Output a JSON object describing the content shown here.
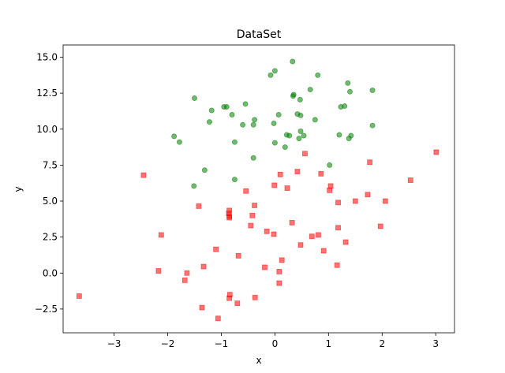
{
  "chart_data": {
    "type": "scatter",
    "title": "DataSet",
    "xlabel": "x",
    "ylabel": "y",
    "xlim": [
      -3.95,
      3.35
    ],
    "ylim": [
      -4.15,
      15.85
    ],
    "xticks": [
      -3,
      -2,
      -1,
      0,
      1,
      2,
      3
    ],
    "xtick_labels": [
      "−3",
      "−2",
      "−1",
      "0",
      "1",
      "2",
      "3"
    ],
    "yticks": [
      -2.5,
      0.0,
      2.5,
      5.0,
      7.5,
      10.0,
      12.5,
      15.0
    ],
    "ytick_labels": [
      "−2.5",
      "0.0",
      "2.5",
      "5.0",
      "7.5",
      "10.0",
      "12.5",
      "15.0"
    ],
    "grid": false,
    "series": [
      {
        "marker": "circle",
        "color": "#008000",
        "alpha": 0.55,
        "points": [
          [
            0.33,
            14.7
          ],
          [
            -0.08,
            13.75
          ],
          [
            0.0,
            14.05
          ],
          [
            0.8,
            13.75
          ],
          [
            1.36,
            13.2
          ],
          [
            0.34,
            12.3
          ],
          [
            0.35,
            12.4
          ],
          [
            0.66,
            12.75
          ],
          [
            1.4,
            12.6
          ],
          [
            1.82,
            12.7
          ],
          [
            -1.5,
            12.15
          ],
          [
            -0.55,
            11.75
          ],
          [
            -0.95,
            11.55
          ],
          [
            -0.9,
            11.55
          ],
          [
            -1.18,
            11.3
          ],
          [
            0.47,
            12.05
          ],
          [
            1.23,
            11.55
          ],
          [
            1.3,
            11.6
          ],
          [
            0.42,
            11.05
          ],
          [
            0.48,
            10.95
          ],
          [
            0.07,
            11.0
          ],
          [
            -0.8,
            11.0
          ],
          [
            -0.38,
            10.65
          ],
          [
            -0.6,
            10.3
          ],
          [
            -0.4,
            10.3
          ],
          [
            -1.22,
            10.5
          ],
          [
            -0.02,
            10.4
          ],
          [
            0.75,
            10.65
          ],
          [
            1.82,
            10.25
          ],
          [
            0.48,
            9.85
          ],
          [
            0.54,
            9.55
          ],
          [
            0.22,
            9.6
          ],
          [
            0.27,
            9.55
          ],
          [
            0.45,
            9.35
          ],
          [
            1.2,
            9.6
          ],
          [
            1.38,
            9.35
          ],
          [
            1.42,
            9.55
          ],
          [
            -1.88,
            9.5
          ],
          [
            -1.78,
            9.1
          ],
          [
            -0.75,
            9.1
          ],
          [
            0.0,
            9.05
          ],
          [
            0.19,
            8.75
          ],
          [
            -0.4,
            8.0
          ],
          [
            -1.31,
            7.15
          ],
          [
            1.02,
            7.5
          ],
          [
            -0.75,
            6.5
          ],
          [
            -1.51,
            6.05
          ]
        ]
      },
      {
        "marker": "square",
        "color": "#ff0000",
        "alpha": 0.55,
        "points": [
          [
            3.01,
            8.4
          ],
          [
            0.56,
            8.3
          ],
          [
            1.77,
            7.7
          ],
          [
            -2.45,
            6.8
          ],
          [
            0.42,
            7.05
          ],
          [
            0.1,
            6.85
          ],
          [
            0.86,
            6.9
          ],
          [
            2.53,
            6.45
          ],
          [
            -0.01,
            6.1
          ],
          [
            0.23,
            5.9
          ],
          [
            1.04,
            6.05
          ],
          [
            1.02,
            5.75
          ],
          [
            -0.54,
            5.7
          ],
          [
            1.73,
            5.45
          ],
          [
            -1.42,
            4.65
          ],
          [
            -0.38,
            4.7
          ],
          [
            1.5,
            5.0
          ],
          [
            1.18,
            4.9
          ],
          [
            2.06,
            5.0
          ],
          [
            -0.85,
            4.35
          ],
          [
            -0.86,
            4.15
          ],
          [
            -0.85,
            3.95
          ],
          [
            -0.42,
            4.0
          ],
          [
            0.32,
            3.5
          ],
          [
            -0.45,
            3.3
          ],
          [
            -0.85,
            3.85
          ],
          [
            1.97,
            3.25
          ],
          [
            1.18,
            3.15
          ],
          [
            -0.15,
            2.9
          ],
          [
            -0.02,
            2.7
          ],
          [
            0.81,
            2.65
          ],
          [
            0.69,
            2.55
          ],
          [
            -2.12,
            2.65
          ],
          [
            0.48,
            1.95
          ],
          [
            1.32,
            2.15
          ],
          [
            0.91,
            1.55
          ],
          [
            -1.1,
            1.65
          ],
          [
            -0.68,
            1.2
          ],
          [
            0.13,
            0.9
          ],
          [
            1.16,
            0.55
          ],
          [
            -1.33,
            0.45
          ],
          [
            -0.19,
            0.4
          ],
          [
            0.08,
            0.1
          ],
          [
            -2.17,
            0.15
          ],
          [
            -1.64,
            0.0
          ],
          [
            0.08,
            -0.7
          ],
          [
            -1.68,
            -0.5
          ],
          [
            -3.65,
            -1.6
          ],
          [
            -0.84,
            -1.5
          ],
          [
            -0.85,
            -1.75
          ],
          [
            -0.37,
            -1.7
          ],
          [
            -0.7,
            -2.1
          ],
          [
            -1.36,
            -2.4
          ],
          [
            -1.06,
            -3.15
          ]
        ]
      }
    ]
  }
}
